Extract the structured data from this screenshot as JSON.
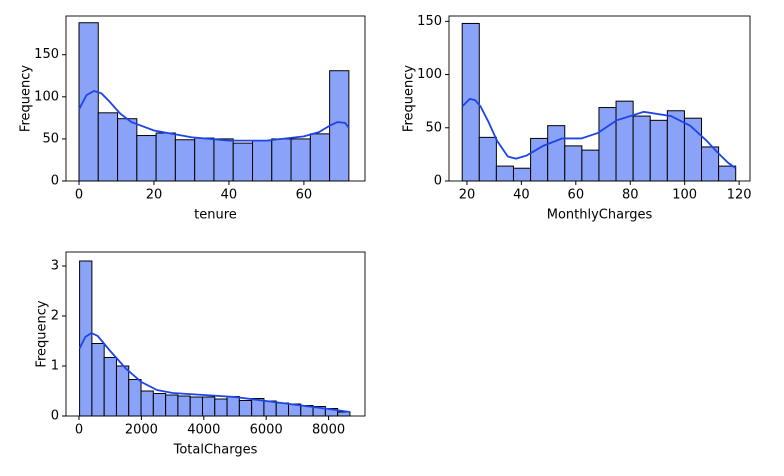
{
  "chart_data": [
    {
      "type": "histogram",
      "x_label": "tenure",
      "y_label": "Frequency",
      "bins": [
        0,
        5.14,
        10.29,
        15.43,
        20.57,
        25.71,
        30.86,
        36,
        41.14,
        46.29,
        51.43,
        56.57,
        61.71,
        66.86,
        72
      ],
      "values": [
        188,
        81,
        74,
        54,
        57,
        49,
        51,
        50,
        45,
        48,
        50,
        50,
        56,
        131
      ],
      "color": "#8aa3f8",
      "edgecolor": "#000000",
      "kde": {
        "color": "#1c44e8",
        "x": [
          0,
          2,
          4,
          6,
          8,
          11,
          14,
          20,
          30,
          40,
          50,
          60,
          64,
          67,
          69,
          71,
          72
        ],
        "values": [
          85,
          102,
          107,
          104,
          95,
          80,
          70,
          60,
          52,
          48,
          48,
          53,
          58,
          66,
          70,
          69,
          63
        ]
      },
      "xlim": [
        -3.47,
        76.3
      ],
      "ylim": [
        0,
        196
      ],
      "xticks": [
        0,
        20,
        40,
        60
      ],
      "yticks": [
        0,
        50,
        100,
        150
      ]
    },
    {
      "type": "histogram",
      "x_label": "MonthlyCharges",
      "y_label": "Frequency",
      "bins": [
        18.25,
        24.53,
        30.81,
        37.09,
        43.38,
        49.66,
        55.94,
        62.22,
        68.5,
        74.78,
        81.06,
        87.34,
        93.63,
        99.91,
        106.19,
        112.47,
        118.75
      ],
      "values": [
        148,
        41,
        14,
        12,
        40,
        52,
        33,
        29,
        69,
        75,
        61,
        57,
        66,
        59,
        32,
        14
      ],
      "color": "#8aa3f8",
      "edgecolor": "#000000",
      "kde": {
        "color": "#1c44e8",
        "x": [
          18.25,
          21,
          23,
          25,
          28,
          31,
          35,
          38,
          42,
          48,
          55,
          62,
          68,
          75,
          85,
          95,
          102,
          108,
          112,
          116,
          118.75
        ],
        "values": [
          70,
          77,
          76,
          70,
          55,
          38,
          23,
          21,
          24,
          33,
          40,
          40,
          45,
          57,
          65,
          61,
          52,
          38,
          27,
          17,
          12
        ]
      },
      "xlim": [
        13.4,
        124
      ],
      "ylim": [
        0,
        155
      ],
      "xticks": [
        20,
        40,
        60,
        80,
        100,
        120
      ],
      "yticks": [
        0,
        50,
        100,
        150
      ]
    },
    {
      "type": "histogram",
      "x_label": "TotalCharges",
      "y_label": "Frequency",
      "bins": [
        18.8,
        412.7,
        806.6,
        1200.5,
        1594.4,
        1988.3,
        2382.2,
        2776.1,
        3170,
        3563.9,
        3957.8,
        4351.7,
        4745.6,
        5139.5,
        5533.4,
        5927.3,
        6321.2,
        6715.1,
        7109,
        7502.9,
        7896.8,
        8290.7,
        8684.6
      ],
      "values": [
        3.1,
        1.45,
        1.17,
        1.0,
        0.73,
        0.5,
        0.45,
        0.42,
        0.4,
        0.38,
        0.38,
        0.34,
        0.39,
        0.31,
        0.35,
        0.3,
        0.26,
        0.24,
        0.21,
        0.19,
        0.15,
        0.08
      ],
      "color": "#8aa3f8",
      "edgecolor": "#000000",
      "kde": {
        "color": "#1c44e8",
        "x": [
          18.8,
          200,
          400,
          600,
          1000,
          1500,
          2000,
          2500,
          3000,
          4000,
          5000,
          6000,
          7000,
          8000,
          8684.6
        ],
        "values": [
          1.35,
          1.58,
          1.66,
          1.6,
          1.3,
          0.95,
          0.68,
          0.52,
          0.46,
          0.42,
          0.38,
          0.3,
          0.22,
          0.14,
          0.08
        ]
      },
      "xlim": [
        -417,
        9167
      ],
      "ylim": [
        0,
        3.28
      ],
      "xticks": [
        0,
        2000,
        4000,
        6000,
        8000
      ],
      "yticks": [
        0,
        1,
        2,
        3
      ]
    }
  ]
}
